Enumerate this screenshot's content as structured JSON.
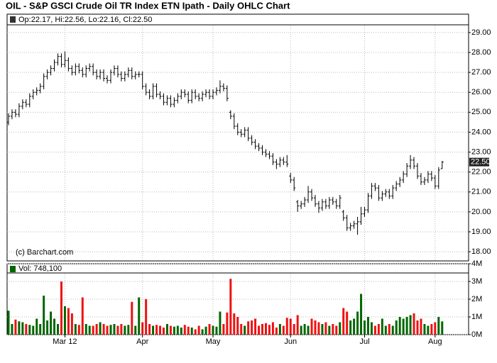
{
  "chart_data": {
    "type": "ohlc",
    "title": "OIL - S&P GSCI Crude Oil TR Index ETN Ipath - Daily OHLC Chart",
    "header": "Op:22.17, Hi:22.56, Lo:22.16, Cl:22.50",
    "watermark": "(c) Barchart.com",
    "last_price": {
      "value": 22.5,
      "label": "22.50"
    },
    "color": "#000000",
    "grid": true,
    "xlim": [
      -0.4,
      130.5
    ],
    "xticks": [
      {
        "value": 16,
        "label": "Mar 12"
      },
      {
        "value": 38,
        "label": "Apr"
      },
      {
        "value": 58,
        "label": "May"
      },
      {
        "value": 80,
        "label": "Jun"
      },
      {
        "value": 101,
        "label": "Jul"
      },
      {
        "value": 121,
        "label": "Aug"
      }
    ],
    "ylim": [
      17.54,
      29.85
    ],
    "yticks": [
      {
        "value": 18,
        "label": "18.00"
      },
      {
        "value": 19,
        "label": "19.00"
      },
      {
        "value": 20,
        "label": "20.00"
      },
      {
        "value": 21,
        "label": "21.00"
      },
      {
        "value": 22,
        "label": "22.00"
      },
      {
        "value": 23,
        "label": "23.00"
      },
      {
        "value": 24,
        "label": "24.00"
      },
      {
        "value": 25,
        "label": "25.00"
      },
      {
        "value": 26,
        "label": "26.00"
      },
      {
        "value": 27,
        "label": "27.00"
      },
      {
        "value": 28,
        "label": "28.00"
      },
      {
        "value": 29,
        "label": "29.00"
      }
    ],
    "open": [
      24.5,
      24.8,
      25.0,
      24.9,
      25.3,
      25.5,
      25.4,
      25.8,
      26.0,
      26.1,
      26.3,
      26.8,
      27.0,
      27.2,
      27.5,
      27.8,
      27.4,
      27.6,
      27.2,
      27.0,
      27.3,
      27.1,
      26.9,
      27.2,
      27.3,
      27.0,
      26.8,
      27.0,
      26.7,
      26.6,
      27.0,
      27.2,
      26.9,
      26.7,
      26.9,
      27.1,
      26.8,
      26.9,
      26.9,
      26.3,
      26.0,
      25.8,
      26.3,
      25.9,
      25.8,
      25.5,
      25.7,
      25.4,
      25.6,
      25.8,
      26.0,
      25.9,
      25.6,
      26.0,
      25.8,
      25.7,
      25.9,
      26.0,
      25.8,
      26.0,
      26.1,
      26.3,
      26.2,
      25.0,
      24.8,
      24.3,
      24.0,
      23.9,
      24.1,
      23.7,
      23.5,
      23.3,
      23.2,
      23.0,
      22.9,
      22.8,
      22.5,
      22.4,
      22.6,
      22.5,
      21.8,
      21.6,
      20.5,
      20.3,
      20.4,
      20.6,
      21.0,
      20.7,
      20.4,
      20.2,
      20.5,
      20.3,
      20.6,
      20.5,
      20.3,
      20.0,
      19.7,
      19.2,
      19.3,
      19.4,
      19.5,
      19.9,
      20.1,
      20.8,
      21.3,
      21.2,
      20.7,
      20.9,
      21.0,
      20.8,
      21.2,
      21.4,
      21.6,
      21.9,
      22.3,
      22.6,
      22.3,
      21.8,
      21.5,
      21.6,
      21.9,
      21.7,
      21.3,
      22.17
    ],
    "high": [
      24.95,
      25.15,
      25.15,
      25.45,
      25.65,
      25.65,
      25.95,
      26.15,
      26.25,
      26.45,
      26.95,
      27.15,
      27.35,
      27.65,
      27.95,
      27.95,
      28.05,
      27.75,
      27.35,
      27.45,
      27.45,
      27.25,
      27.35,
      27.45,
      27.45,
      27.15,
      27.15,
      27.15,
      26.85,
      27.15,
      27.35,
      27.35,
      27.05,
      27.05,
      27.25,
      27.25,
      27.05,
      27.05,
      27.05,
      26.45,
      26.15,
      26.45,
      26.45,
      26.05,
      25.95,
      25.85,
      25.85,
      25.75,
      25.95,
      26.15,
      26.15,
      26.05,
      26.15,
      26.15,
      25.95,
      26.05,
      26.15,
      26.15,
      26.15,
      26.25,
      26.6,
      26.45,
      26.35,
      25.1,
      24.95,
      24.45,
      24.15,
      24.25,
      24.25,
      23.85,
      23.65,
      23.45,
      23.35,
      23.15,
      23.05,
      22.95,
      22.65,
      22.75,
      22.75,
      22.85,
      21.95,
      21.75,
      20.6,
      20.55,
      20.75,
      21.3,
      21.15,
      20.85,
      20.55,
      20.65,
      20.65,
      20.75,
      20.75,
      20.65,
      20.85,
      20.1,
      19.85,
      19.45,
      19.55,
      19.75,
      20.25,
      20.25,
      20.95,
      21.45,
      21.45,
      21.35,
      21.05,
      21.15,
      21.15,
      21.35,
      21.55,
      21.75,
      22.05,
      22.45,
      22.85,
      22.75,
      22.45,
      21.95,
      21.75,
      22.05,
      22.05,
      21.85,
      22.25,
      22.56
    ],
    "low": [
      24.35,
      24.65,
      24.75,
      24.75,
      25.15,
      25.25,
      25.25,
      25.65,
      25.85,
      25.95,
      26.15,
      26.65,
      26.85,
      27.05,
      27.35,
      27.25,
      27.25,
      27.05,
      26.85,
      26.85,
      26.95,
      26.75,
      26.75,
      27.05,
      26.85,
      26.65,
      26.65,
      26.55,
      26.45,
      26.45,
      26.85,
      26.75,
      26.55,
      26.55,
      26.75,
      26.65,
      26.65,
      26.75,
      26.15,
      25.85,
      25.65,
      25.65,
      25.75,
      25.65,
      25.35,
      25.35,
      25.25,
      25.25,
      25.45,
      25.65,
      25.75,
      25.45,
      25.45,
      25.65,
      25.55,
      25.55,
      25.75,
      25.65,
      25.65,
      25.85,
      25.95,
      26.05,
      25.55,
      24.65,
      24.15,
      23.85,
      23.75,
      23.75,
      23.55,
      23.35,
      23.15,
      23.05,
      22.85,
      22.75,
      22.65,
      22.35,
      22.15,
      22.25,
      22.35,
      22.25,
      21.45,
      21.05,
      20.0,
      20.15,
      20.25,
      20.45,
      20.55,
      20.25,
      19.95,
      20.05,
      20.15,
      20.15,
      20.35,
      20.15,
      20.15,
      19.55,
      19.05,
      19.05,
      19.15,
      18.85,
      19.35,
      19.75,
      19.95,
      20.65,
      21.05,
      20.55,
      20.55,
      20.75,
      20.65,
      20.65,
      21.05,
      21.25,
      21.45,
      21.75,
      22.15,
      22.15,
      21.65,
      21.35,
      21.35,
      21.45,
      21.55,
      21.15,
      21.15,
      22.16
    ],
    "close": [
      24.8,
      25.0,
      24.9,
      25.3,
      25.5,
      25.4,
      25.8,
      26.0,
      26.1,
      26.3,
      26.8,
      27.0,
      27.2,
      27.5,
      27.8,
      27.4,
      27.6,
      27.2,
      27.0,
      27.3,
      27.1,
      26.9,
      27.2,
      27.3,
      27.0,
      26.8,
      27.0,
      26.7,
      26.6,
      27.0,
      27.2,
      26.9,
      26.7,
      26.9,
      27.1,
      26.8,
      26.9,
      26.9,
      26.3,
      26.0,
      25.8,
      26.3,
      25.9,
      25.8,
      25.5,
      25.7,
      25.4,
      25.6,
      25.8,
      26.0,
      25.9,
      25.6,
      26.0,
      25.8,
      25.7,
      25.9,
      26.0,
      25.8,
      26.0,
      26.1,
      26.3,
      26.2,
      25.7,
      24.8,
      24.3,
      24.0,
      23.9,
      24.1,
      23.7,
      23.5,
      23.3,
      23.2,
      23.0,
      22.9,
      22.8,
      22.5,
      22.4,
      22.6,
      22.5,
      22.4,
      21.6,
      21.2,
      20.3,
      20.4,
      20.6,
      21.0,
      20.7,
      20.4,
      20.2,
      20.5,
      20.3,
      20.6,
      20.5,
      20.3,
      20.7,
      19.7,
      19.2,
      19.3,
      19.4,
      19.5,
      19.9,
      20.1,
      20.8,
      21.3,
      21.2,
      20.7,
      20.9,
      21.0,
      20.8,
      21.2,
      21.4,
      21.6,
      21.9,
      22.3,
      22.6,
      22.3,
      21.8,
      21.5,
      21.6,
      21.9,
      21.7,
      21.3,
      22.1,
      22.5
    ],
    "volume": {
      "label": "Vol: 748,100",
      "up_color": "#006600",
      "down_color": "#ee1111",
      "ylim": [
        0,
        4
      ],
      "yticks": [
        {
          "value": 0,
          "label": "0M"
        },
        {
          "value": 1,
          "label": "1M"
        },
        {
          "value": 2,
          "label": "2M"
        },
        {
          "value": 3,
          "label": "3M"
        },
        {
          "value": 4,
          "label": "4M"
        }
      ],
      "values": [
        1.35,
        0.6,
        0.85,
        0.75,
        0.7,
        0.6,
        0.55,
        0.5,
        0.9,
        0.6,
        2.2,
        0.8,
        1.3,
        0.9,
        0.6,
        3.0,
        1.6,
        1.5,
        1.2,
        0.6,
        0.55,
        2.1,
        0.6,
        0.5,
        0.5,
        0.6,
        0.7,
        0.6,
        0.5,
        0.55,
        0.6,
        0.5,
        0.6,
        0.5,
        0.55,
        1.85,
        0.5,
        2.1,
        0.7,
        2.0,
        0.6,
        0.5,
        0.55,
        0.5,
        0.4,
        0.6,
        0.5,
        0.45,
        0.5,
        0.4,
        0.55,
        0.45,
        0.4,
        0.3,
        0.5,
        0.3,
        0.45,
        0.6,
        0.5,
        0.45,
        1.3,
        0.6,
        1.25,
        3.15,
        1.2,
        1.0,
        0.6,
        0.5,
        0.75,
        0.8,
        0.9,
        0.5,
        0.6,
        0.65,
        0.55,
        0.7,
        0.4,
        0.6,
        0.5,
        0.95,
        0.9,
        0.6,
        1.1,
        0.5,
        0.6,
        0.5,
        0.9,
        0.8,
        0.7,
        0.6,
        0.7,
        0.5,
        0.6,
        0.5,
        0.7,
        1.5,
        1.3,
        0.8,
        0.9,
        1.3,
        2.3,
        0.8,
        1.0,
        0.7,
        0.5,
        0.6,
        0.9,
        0.5,
        0.6,
        0.5,
        0.8,
        1.0,
        0.9,
        1.0,
        1.1,
        1.2,
        0.8,
        0.9,
        0.6,
        0.5,
        0.6,
        0.7,
        1.0,
        0.748
      ]
    }
  }
}
